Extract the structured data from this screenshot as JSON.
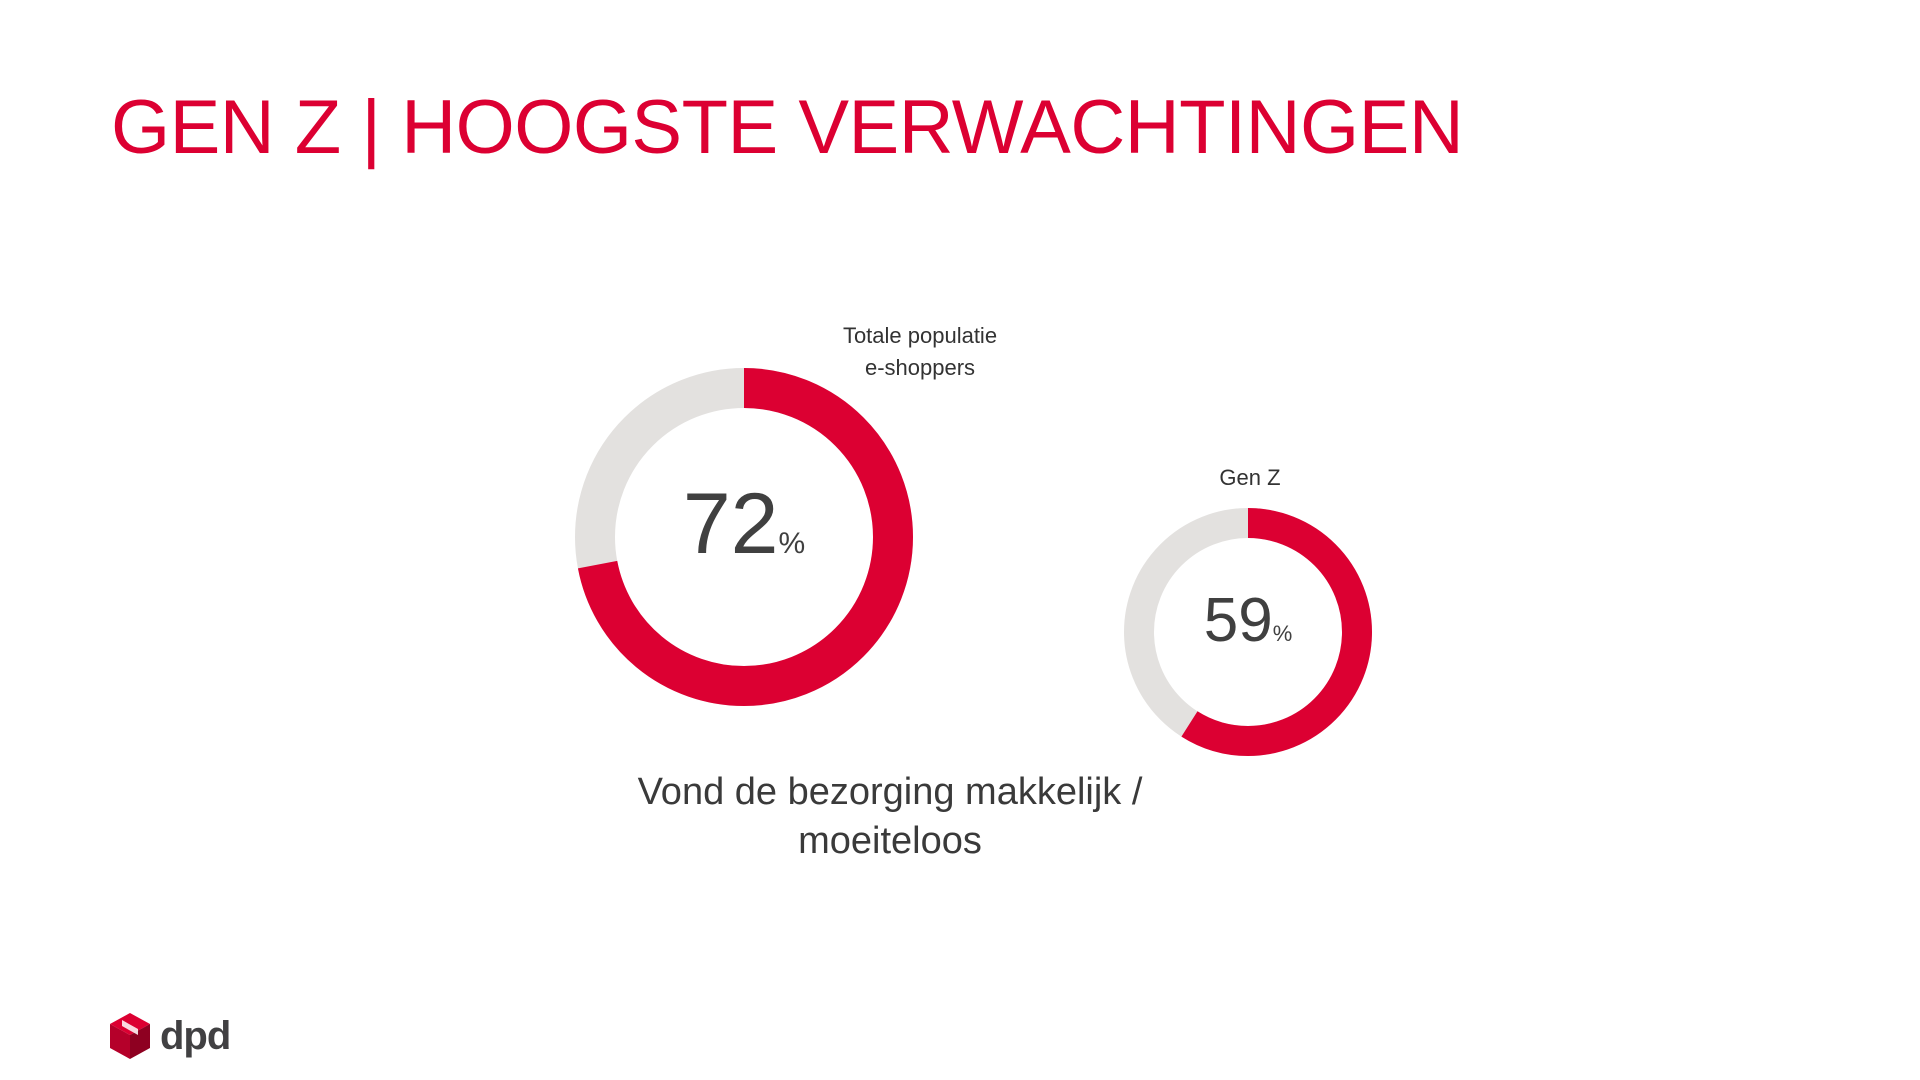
{
  "slide": {
    "title": "GEN Z | HOOGSTE VERWACHTINGEN",
    "title_color": "#DC0032",
    "caption_line1": "Vond de bezorging makkelijk /",
    "caption_line2": "moeiteloos"
  },
  "colors": {
    "accent": "#DC0032",
    "remainder": "#E3E1DF",
    "text": "#404040"
  },
  "chart_data": [
    {
      "type": "pie",
      "variant": "donut",
      "label_line1": "Totale populatie",
      "label_line2": "e-shoppers",
      "value": 72,
      "display_value": "72",
      "unit": "%"
    },
    {
      "type": "pie",
      "variant": "donut",
      "label_line1": "Gen Z",
      "value": 59,
      "display_value": "59",
      "unit": "%"
    }
  ],
  "logo": {
    "text": "dpd",
    "icon": "dpd-cube-icon"
  }
}
